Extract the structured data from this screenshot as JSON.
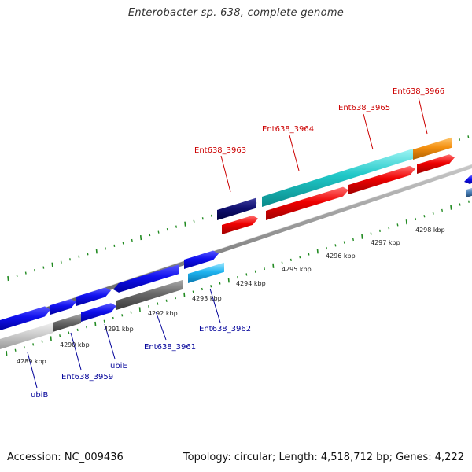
{
  "title": "Enterobacter sp. 638, complete genome",
  "footer": {
    "accession": "Accession: NC_009436",
    "summary": "Topology: circular; Length: 4,518,712 bp; Genes: 4,222"
  },
  "colors": {
    "forward_label": "#cc0000",
    "reverse_label": "#000099",
    "backbone": "#888888",
    "ticks": "#228b22"
  },
  "scale_labels": [
    "4289 kbp",
    "4290 kbp",
    "4291 kbp",
    "4292 kbp",
    "4293 kbp",
    "4294 kbp",
    "4295 kbp",
    "4296 kbp",
    "4297 kbp",
    "4298 kbp"
  ],
  "forward_genes": [
    {
      "label": "Ent638_3963"
    },
    {
      "label": "Ent638_3964"
    },
    {
      "label": "Ent638_3965"
    },
    {
      "label": "Ent638_3966"
    }
  ],
  "reverse_genes": [
    {
      "label": "ubiB"
    },
    {
      "label": "Ent638_3959"
    },
    {
      "label": "ubiE"
    },
    {
      "label": "Ent638_3961"
    },
    {
      "label": "Ent638_3962"
    }
  ]
}
